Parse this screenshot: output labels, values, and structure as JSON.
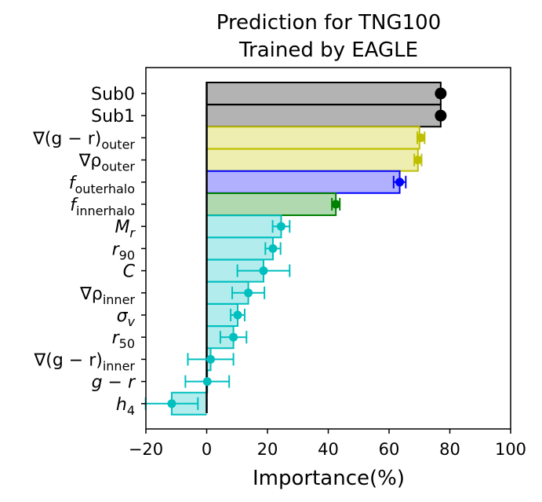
{
  "chart_data": {
    "type": "bar",
    "orientation": "horizontal",
    "title_lines": [
      "Prediction for TNG100",
      "Trained by EAGLE"
    ],
    "xlabel": "Importance(%)",
    "ylabel": "",
    "xlim": [
      -20,
      100
    ],
    "xticks": [
      -20,
      0,
      20,
      40,
      60,
      80,
      100
    ],
    "xtick_labels": [
      "−20",
      "0",
      "20",
      "40",
      "60",
      "80",
      "100"
    ],
    "grid": false,
    "legend": "none",
    "categories": [
      {
        "main": "Sub0",
        "sub": "",
        "value": 77,
        "err": 0,
        "marker_value": 77,
        "fill": "#b3b3b3",
        "edge": "#000000",
        "marker": "#000000"
      },
      {
        "main": "Sub1",
        "sub": "",
        "value": 77,
        "err": 0,
        "marker_value": 77,
        "fill": "#b3b3b3",
        "edge": "#000000",
        "marker": "#000000"
      },
      {
        "main": "∇(g − r)",
        "sub": "outer",
        "value": 70,
        "err": 1.2,
        "marker_value": 70.5,
        "fill": "#eeeeb0",
        "edge": "#bfbf00",
        "marker": "#bfbf00"
      },
      {
        "main": "∇ρ",
        "sub": "outer",
        "value": 69.5,
        "err": 1.2,
        "marker_value": 69.5,
        "fill": "#eeeeb0",
        "edge": "#bfbf00",
        "marker": "#bfbf00"
      },
      {
        "main": "f",
        "sub": "outerhalo",
        "value": 63.5,
        "err": 2,
        "marker_value": 63.5,
        "fill": "#b0b0ff",
        "edge": "#0000ff",
        "marker": "#0000ff"
      },
      {
        "main": "f",
        "sub": "innerhalo",
        "value": 42.5,
        "err": 1.3,
        "marker_value": 42.5,
        "fill": "#b0d9b0",
        "edge": "#008000",
        "marker": "#008000"
      },
      {
        "main": "M",
        "sub": "r",
        "value": 24.5,
        "err": 2.8,
        "marker_value": 24.5,
        "fill": "#b3ecec",
        "edge": "#00bfbf",
        "marker": "#00bfbf"
      },
      {
        "main": "r",
        "sub": "90",
        "value": 21.8,
        "err": 2.5,
        "marker_value": 21.8,
        "fill": "#b3ecec",
        "edge": "#00bfbf",
        "marker": "#00bfbf"
      },
      {
        "main": "C",
        "sub": "",
        "value": 18.7,
        "err": 8.6,
        "marker_value": 18.7,
        "fill": "#b3ecec",
        "edge": "#00bfbf",
        "marker": "#00bfbf"
      },
      {
        "main": "∇ρ",
        "sub": "inner",
        "value": 13.7,
        "err": 5.3,
        "marker_value": 13.7,
        "fill": "#b3ecec",
        "edge": "#00bfbf",
        "marker": "#00bfbf"
      },
      {
        "main": "σ",
        "sub": "v",
        "value": 10.2,
        "err": 2.3,
        "marker_value": 10.2,
        "fill": "#b3ecec",
        "edge": "#00bfbf",
        "marker": "#00bfbf"
      },
      {
        "main": "r",
        "sub": "50",
        "value": 8.8,
        "err": 4.3,
        "marker_value": 8.8,
        "fill": "#b3ecec",
        "edge": "#00bfbf",
        "marker": "#00bfbf"
      },
      {
        "main": "∇(g − r)",
        "sub": "inner",
        "value": 1.3,
        "err": 7.5,
        "marker_value": 1.3,
        "fill": "#b3ecec",
        "edge": "#00bfbf",
        "marker": "#00bfbf"
      },
      {
        "main": "g − r",
        "sub": "",
        "value": 0.2,
        "err": 7.2,
        "marker_value": 0.2,
        "fill": "#b3ecec",
        "edge": "#00bfbf",
        "marker": "#00bfbf"
      },
      {
        "main": "h",
        "sub": "4",
        "value": -11.5,
        "err": 8.6,
        "marker_value": -11.5,
        "fill": "#b3ecec",
        "edge": "#00bfbf",
        "marker": "#00bfbf"
      }
    ]
  }
}
